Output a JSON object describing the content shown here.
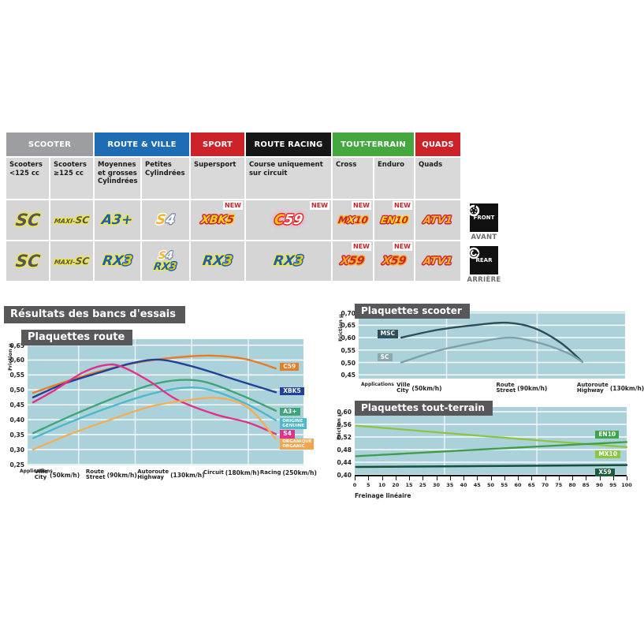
{
  "section_title": "Résultats des bancs d'essais",
  "table": {
    "new_label": "NEW",
    "groups": [
      {
        "label": "SCOOTER",
        "color": "#9c9ea1"
      },
      {
        "label": "ROUTE & VILLE",
        "color": "#1d6cb4"
      },
      {
        "label": "SPORT",
        "color": "#cc2229"
      },
      {
        "label": "ROUTE RACING",
        "color": "#161616"
      },
      {
        "label": "TOUT-TERRAIN",
        "color": "#45a83e"
      },
      {
        "label": "QUADS",
        "color": "#cc2229"
      }
    ],
    "columns": [
      "Scooters <125 cc",
      "Scooters ≥125 cc",
      "Moyennes et grosses Cylindrées",
      "Petites Cylindrées",
      "Supersport",
      "Course uniquement sur circuit",
      "Cross",
      "Enduro",
      "Quads"
    ],
    "logos": {
      "sc": {
        "cls": "logo-sc",
        "parts": [
          {
            "t": "SC",
            "c": "#55565a",
            "o": "#f0e73d"
          }
        ]
      },
      "maxisc": {
        "cls": "logo-maxisc",
        "parts": [
          {
            "t": "MAXI-",
            "c": "#55565a",
            "o": "#f0e73d",
            "small": true
          },
          {
            "t": "SC",
            "c": "#55565a",
            "o": "#f0e73d"
          }
        ]
      },
      "a3": {
        "cls": "logo-a3",
        "parts": [
          {
            "t": "A3+",
            "c": "#1d5fad",
            "o": "#f0e73d"
          }
        ]
      },
      "s4": {
        "cls": "logo-s4",
        "parts": [
          {
            "t": "S",
            "c": "#f2b32b",
            "o": "#ffffff"
          },
          {
            "t": "4",
            "c": "#ffffff",
            "o": "#7c8fa8"
          }
        ]
      },
      "xbk5": {
        "cls": "logo-xbk5",
        "parts": [
          {
            "t": "XBK",
            "c": "#ffd414",
            "o": "#cf2030"
          },
          {
            "t": "5",
            "c": "#cf2030",
            "o": "#ffd414"
          }
        ]
      },
      "c59": {
        "cls": "logo-c59",
        "glow": "#ff85c2",
        "parts": [
          {
            "t": "C",
            "c": "#ffc20e",
            "o": "#e5231b"
          },
          {
            "t": "59",
            "c": "#ffffff",
            "o": "#e5231b"
          }
        ]
      },
      "mx10": {
        "cls": "logo-mx10",
        "parts": [
          {
            "t": "M",
            "c": "#cf2030",
            "o": "#f2b62a"
          },
          {
            "t": "X",
            "c": "#ffd414",
            "o": "#cf2030"
          },
          {
            "t": "10",
            "c": "#cf2030",
            "o": "#f2b62a"
          }
        ]
      },
      "en10": {
        "cls": "logo-en10",
        "parts": [
          {
            "t": "EN",
            "c": "#ffd414",
            "o": "#cf2030"
          },
          {
            "t": "10",
            "c": "#cf2030",
            "o": "#ffd414"
          }
        ]
      },
      "atv1": {
        "cls": "logo-atv1",
        "parts": [
          {
            "t": "ATV1",
            "c": "#f2b62a",
            "o": "#cf2030"
          }
        ]
      },
      "rx3": {
        "cls": "logo-rx3",
        "parts": [
          {
            "t": "RX",
            "c": "#1d5fad",
            "o": "#f0e73d"
          },
          {
            "t": "3",
            "c": "#e0cb1e",
            "o": "#1d5fad"
          }
        ]
      },
      "rx3sm": {
        "cls": "logo-rx3sm",
        "parts": [
          {
            "t": "RX",
            "c": "#1d5fad",
            "o": "#f0e73d"
          },
          {
            "t": "3",
            "c": "#e0cb1e",
            "o": "#1d5fad"
          }
        ]
      },
      "s4sm": {
        "cls": "logo-rx3sm",
        "parts": [
          {
            "t": "S",
            "c": "#f2b32b",
            "o": "#ffffff"
          },
          {
            "t": "4",
            "c": "#ffffff",
            "o": "#7c8fa8"
          }
        ]
      },
      "x59": {
        "cls": "logo-x59",
        "parts": [
          {
            "t": "X",
            "c": "#f5a71f",
            "o": "#cf2030"
          },
          {
            "t": "59",
            "c": "#cf2030",
            "o": "#f5a71f"
          }
        ]
      }
    },
    "front_row": [
      {
        "logo": "sc"
      },
      {
        "logo": "maxisc"
      },
      {
        "logo": "a3"
      },
      {
        "logo": "s4"
      },
      {
        "logo": "xbk5",
        "new": true
      },
      {
        "logo": "c59",
        "new": true
      },
      {
        "logo": "mx10",
        "new": true
      },
      {
        "logo": "en10",
        "new": true
      },
      {
        "logo": "atv1"
      }
    ],
    "rear_row": [
      {
        "logo": "sc"
      },
      {
        "logo": "maxisc"
      },
      {
        "logo": "rx3"
      },
      {
        "stack": [
          "s4sm",
          "rx3sm"
        ]
      },
      {
        "logo": "rx3"
      },
      {
        "logo": "rx3"
      },
      {
        "logo": "x59",
        "new": true
      },
      {
        "logo": "x59",
        "new": true
      },
      {
        "logo": "atv1"
      }
    ]
  },
  "front_rear": {
    "front": "FRONT",
    "front_fr": "AVANT",
    "rear": "REAR",
    "rear_fr": "ARRIÈRE"
  },
  "chart_data": [
    {
      "type": "line",
      "title": "Plaquettes route",
      "ylabel": "Friction µ",
      "xaxis_note": "Applications",
      "plot_bg": "#abd2da",
      "vtop": 0.67,
      "vbot": 0.247,
      "yticks": [
        {
          "v": 0.65,
          "label": "0,65"
        },
        {
          "v": 0.6,
          "label": "0,60"
        },
        {
          "v": 0.55,
          "label": "0,55"
        },
        {
          "v": 0.5,
          "label": "0,50"
        },
        {
          "v": 0.45,
          "label": "0,45"
        },
        {
          "v": 0.4,
          "label": "0,40"
        },
        {
          "v": 0.35,
          "label": "0,35"
        },
        {
          "v": 0.3,
          "label": "0,30"
        },
        {
          "v": 0.25,
          "label": "0,25"
        }
      ],
      "vgrid": [
        0.185,
        0.39,
        0.595,
        0.8
      ],
      "xlabels": [
        {
          "f": 0.071,
          "lines": [
            "Ville",
            "City"
          ],
          "suffix": "(50km/h)"
        },
        {
          "f": 0.263,
          "lines": [
            "Route",
            "Street"
          ],
          "suffix": "(90km/h)"
        },
        {
          "f": 0.466,
          "lines": [
            "Autoroute",
            "Highway"
          ],
          "suffix": "(130km/h)"
        },
        {
          "f": 0.694,
          "lines": [
            "Circuit"
          ],
          "suffix": "(180km/h)"
        },
        {
          "f": 0.9,
          "lines": [
            "Racing"
          ],
          "suffix": "(250km/h)"
        }
      ],
      "series": [
        {
          "name": "C59",
          "color": "#e87c26",
          "width": 2.4,
          "points": [
            [
              0.02,
              0.49
            ],
            [
              0.13,
              0.525
            ],
            [
              0.26,
              0.562
            ],
            [
              0.4,
              0.592
            ],
            [
              0.52,
              0.607
            ],
            [
              0.66,
              0.615
            ],
            [
              0.79,
              0.603
            ],
            [
              0.9,
              0.572
            ]
          ],
          "label": {
            "lines": [
              "C59"
            ],
            "bg": "#e87c26",
            "f": 0.915,
            "v": 0.577
          }
        },
        {
          "name": "XBK5",
          "color": "#20409a",
          "width": 2.4,
          "points": [
            [
              0.02,
              0.475
            ],
            [
              0.13,
              0.52
            ],
            [
              0.26,
              0.558
            ],
            [
              0.38,
              0.59
            ],
            [
              0.48,
              0.601
            ],
            [
              0.6,
              0.578
            ],
            [
              0.75,
              0.535
            ],
            [
              0.9,
              0.492
            ]
          ],
          "label": {
            "lines": [
              "XBK5"
            ],
            "bg": "#20409a",
            "f": 0.915,
            "v": 0.495
          }
        },
        {
          "name": "A3+",
          "color": "#3ea579",
          "width": 2.4,
          "points": [
            [
              0.02,
              0.355
            ],
            [
              0.15,
              0.41
            ],
            [
              0.3,
              0.468
            ],
            [
              0.44,
              0.515
            ],
            [
              0.55,
              0.533
            ],
            [
              0.65,
              0.525
            ],
            [
              0.78,
              0.48
            ],
            [
              0.9,
              0.43
            ]
          ],
          "label": {
            "lines": [
              "A3+"
            ],
            "bg": "#3ea579",
            "f": 0.915,
            "v": 0.428
          }
        },
        {
          "name": "ORIGINE / GENUINE",
          "color": "#4cb9cc",
          "width": 2.4,
          "points": [
            [
              0.02,
              0.338
            ],
            [
              0.15,
              0.39
            ],
            [
              0.3,
              0.443
            ],
            [
              0.45,
              0.487
            ],
            [
              0.58,
              0.508
            ],
            [
              0.68,
              0.495
            ],
            [
              0.8,
              0.45
            ],
            [
              0.9,
              0.398
            ]
          ],
          "label": {
            "lines": [
              "ORIGINE",
              "GENUINE"
            ],
            "bg": "#4cb9cc",
            "f": 0.915,
            "v": 0.388
          }
        },
        {
          "name": "S4",
          "color": "#e23189",
          "width": 2.4,
          "points": [
            [
              0.02,
              0.458
            ],
            [
              0.1,
              0.5
            ],
            [
              0.2,
              0.558
            ],
            [
              0.28,
              0.583
            ],
            [
              0.34,
              0.578
            ],
            [
              0.44,
              0.53
            ],
            [
              0.54,
              0.468
            ],
            [
              0.68,
              0.418
            ],
            [
              0.8,
              0.39
            ],
            [
              0.9,
              0.352
            ]
          ],
          "label": {
            "lines": [
              "S4"
            ],
            "bg": "#e23189",
            "f": 0.915,
            "v": 0.352
          }
        },
        {
          "name": "ORGANIQUE / ORGANIC",
          "color": "#f0b05a",
          "width": 2.4,
          "points": [
            [
              0.02,
              0.3
            ],
            [
              0.15,
              0.35
            ],
            [
              0.3,
              0.4
            ],
            [
              0.45,
              0.445
            ],
            [
              0.6,
              0.468
            ],
            [
              0.7,
              0.472
            ],
            [
              0.8,
              0.44
            ],
            [
              0.9,
              0.335
            ]
          ],
          "label": {
            "lines": [
              "ORGANIQUE",
              "ORGANIC"
            ],
            "bg": "#f0a54e",
            "f": 0.915,
            "v": 0.318
          }
        }
      ]
    },
    {
      "type": "line",
      "title": "Plaquettes scooter",
      "ylabel": "Friction µ",
      "xaxis_note": "Applications",
      "plot_bg": "#abd2da",
      "vtop": 0.705,
      "vbot": 0.435,
      "yticks": [
        {
          "v": 0.7,
          "label": "0,70"
        },
        {
          "v": 0.65,
          "label": "0,65"
        },
        {
          "v": 0.6,
          "label": "0,60"
        },
        {
          "v": 0.55,
          "label": "0,55"
        },
        {
          "v": 0.5,
          "label": "0,50"
        },
        {
          "v": 0.45,
          "label": "0,45"
        }
      ],
      "vgrid": [
        0.33,
        0.67
      ],
      "xlabels": [
        {
          "f": 0.19,
          "lines": [
            "Ville",
            "City"
          ],
          "suffix": "(50km/h)"
        },
        {
          "f": 0.57,
          "lines": [
            "Route",
            "Street"
          ],
          "suffix": "(90km/h)"
        },
        {
          "f": 0.89,
          "lines": [
            "Autoroute",
            "Highway"
          ],
          "suffix": "(130km/h)"
        }
      ],
      "series": [
        {
          "name": "MSC",
          "color": "#2f4d59",
          "width": 2.4,
          "points": [
            [
              0.16,
              0.6
            ],
            [
              0.3,
              0.632
            ],
            [
              0.45,
              0.652
            ],
            [
              0.56,
              0.66
            ],
            [
              0.66,
              0.638
            ],
            [
              0.76,
              0.578
            ],
            [
              0.84,
              0.502
            ]
          ],
          "label": {
            "lines": [
              "MSC"
            ],
            "bg": "#2f4d59",
            "f": 0.07,
            "v": 0.615
          }
        },
        {
          "name": "SC",
          "color": "#7fa0aa",
          "width": 2.4,
          "points": [
            [
              0.16,
              0.5
            ],
            [
              0.3,
              0.548
            ],
            [
              0.45,
              0.582
            ],
            [
              0.57,
              0.6
            ],
            [
              0.68,
              0.578
            ],
            [
              0.78,
              0.54
            ],
            [
              0.84,
              0.502
            ]
          ],
          "label": {
            "lines": [
              "SC"
            ],
            "bg": "#8da9b0",
            "f": 0.07,
            "v": 0.52
          }
        }
      ]
    },
    {
      "type": "line",
      "title": "Plaquettes tout-terrain",
      "ylabel": "Friction µ",
      "xlabel": "Freinage linéaire",
      "plot_bg": "#abd2da",
      "axis_line": true,
      "vtop": 0.615,
      "vbot": 0.395,
      "yticks": [
        {
          "v": 0.6,
          "label": "0,60"
        },
        {
          "v": 0.56,
          "label": "0,56"
        },
        {
          "v": 0.52,
          "label": "0,52"
        },
        {
          "v": 0.48,
          "label": "0,48"
        },
        {
          "v": 0.44,
          "label": "0,44"
        },
        {
          "v": 0.4,
          "label": "0,40"
        }
      ],
      "vgrid": [
        0.33,
        0.67
      ],
      "xticks": [
        "0",
        "5",
        "10",
        "20",
        "15",
        "25",
        "30",
        "35",
        "40",
        "45",
        "50",
        "55",
        "60",
        "65",
        "70",
        "75",
        "80",
        "85",
        "90",
        "95",
        "100"
      ],
      "series": [
        {
          "name": "MX10",
          "color": "#8cc63e",
          "width": 2.3,
          "points": [
            [
              0.005,
              0.556
            ],
            [
              0.5,
              0.521
            ],
            [
              1.0,
              0.488
            ]
          ],
          "label": {
            "lines": [
              "MX10"
            ],
            "bg": "#8dc63f",
            "f": 0.885,
            "v": 0.465
          }
        },
        {
          "name": "EN10",
          "color": "#3d9e47",
          "width": 2.3,
          "points": [
            [
              0.005,
              0.459
            ],
            [
              0.5,
              0.482
            ],
            [
              1.0,
              0.504
            ]
          ],
          "label": {
            "lines": [
              "EN10"
            ],
            "bg": "#3aa648",
            "f": 0.885,
            "v": 0.528
          }
        },
        {
          "name": "X59",
          "color": "#15503a",
          "width": 2.5,
          "points": [
            [
              0.005,
              0.425
            ],
            [
              1.0,
              0.431
            ]
          ],
          "label": {
            "lines": [
              "X59"
            ],
            "bg": "#1d5c3a",
            "f": 0.885,
            "v": 0.408
          }
        }
      ]
    }
  ]
}
